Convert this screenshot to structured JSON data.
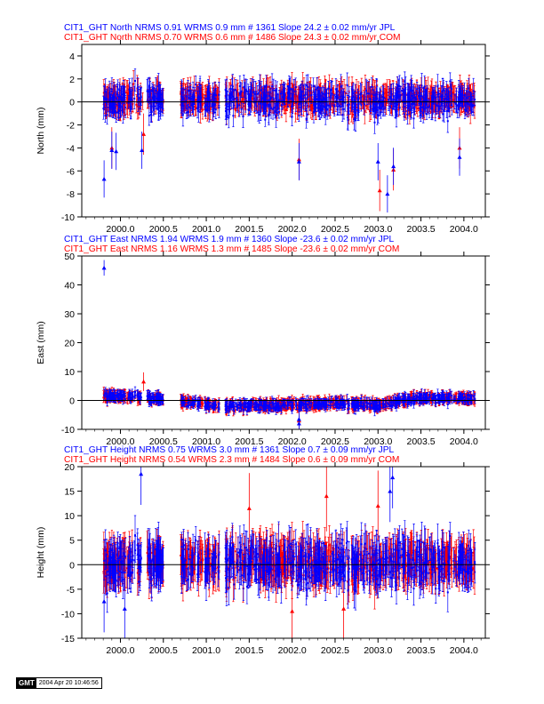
{
  "colors": {
    "jpl": "#0000ff",
    "com": "#ff0000",
    "axis": "#000000",
    "zero_line": "#000000"
  },
  "stamp": {
    "logo": "GMT",
    "timestamp": "2004 Apr 20 10:46:56"
  },
  "chart_data": [
    {
      "type": "scatter",
      "panel": "north",
      "title_lines": [
        {
          "text": "CIT1_GHT North NRMS 0.91 WRMS  0.9 mm # 1361 Slope   24.2 ±  0.02 mm/yr JPL",
          "color": "#0000ff"
        },
        {
          "text": "CIT1_GHT North NRMS 0.70 WRMS  0.6 mm # 1486 Slope   24.3 ±  0.02 mm/yr COM",
          "color": "#ff0000"
        }
      ],
      "ylabel": "North (mm)",
      "xlabel": "",
      "xlim": [
        1999.55,
        2004.25
      ],
      "ylim": [
        -10,
        5
      ],
      "xticks": [
        2000.0,
        2000.5,
        2001.0,
        2001.5,
        2002.0,
        2002.5,
        2003.0,
        2003.5,
        2004.0
      ],
      "xtick_labels": [
        "2000.0",
        "2000.5",
        "2001.0",
        "2001.5",
        "2002.0",
        "2002.5",
        "2003.0",
        "2003.5",
        "2004.0"
      ],
      "yticks": [
        -10,
        -8,
        -6,
        -4,
        -2,
        0,
        2,
        4
      ],
      "ytick_labels": [
        "-10",
        "-8",
        "-6",
        "-4",
        "-2",
        "0",
        "2",
        "4"
      ],
      "zero_line": true,
      "gaps": [
        [
          2000.27,
          2000.31
        ],
        [
          2000.5,
          2000.7
        ],
        [
          2001.15,
          2001.22
        ]
      ],
      "series": [
        {
          "name": "JPL",
          "color": "#0000ff",
          "count": 1361,
          "x_range": [
            1999.8,
            2004.13
          ],
          "center": 0.2,
          "spread": 0.9,
          "err": 0.9,
          "outliers": [
            [
              1999.81,
              -6.7
            ],
            [
              1999.9,
              -4.2
            ],
            [
              1999.95,
              -4.3
            ],
            [
              2000.25,
              -4.2
            ],
            [
              2002.08,
              -5.2
            ],
            [
              2003.0,
              -5.2
            ],
            [
              2003.11,
              -8.0
            ],
            [
              2003.18,
              -5.6
            ],
            [
              2003.95,
              -4.8
            ]
          ]
        },
        {
          "name": "COM",
          "color": "#ff0000",
          "count": 1486,
          "x_range": [
            1999.8,
            2004.13
          ],
          "center": 0.3,
          "spread": 0.7,
          "err": 1.0,
          "outliers": [
            [
              1999.9,
              -4.0
            ],
            [
              2000.27,
              -2.8
            ],
            [
              2002.08,
              -5.0
            ],
            [
              2003.02,
              -7.7
            ],
            [
              2003.18,
              -5.9
            ],
            [
              2003.95,
              -4.0
            ]
          ]
        }
      ]
    },
    {
      "type": "scatter",
      "panel": "east",
      "title_lines": [
        {
          "text": "CIT1_GHT East NRMS 1.94 WRMS  1.9 mm # 1360 Slope  -23.6 ±  0.02 mm/yr JPL",
          "color": "#0000ff"
        },
        {
          "text": "CIT1_GHT East NRMS 1.16 WRMS  1.3 mm # 1485 Slope  -23.6 ±  0.02 mm/yr COM",
          "color": "#ff0000"
        }
      ],
      "ylabel": "East (mm)",
      "xlabel": "",
      "xlim": [
        1999.55,
        2004.25
      ],
      "ylim": [
        -10,
        50
      ],
      "xticks": [
        2000.0,
        2000.5,
        2001.0,
        2001.5,
        2002.0,
        2002.5,
        2003.0,
        2003.5,
        2004.0
      ],
      "xtick_labels": [
        "2000.0",
        "2000.5",
        "2001.0",
        "2001.5",
        "2002.0",
        "2002.5",
        "2003.0",
        "2003.5",
        "2004.0"
      ],
      "yticks": [
        -10,
        0,
        10,
        20,
        30,
        40,
        50
      ],
      "ytick_labels": [
        "-10",
        "0",
        "10",
        "20",
        "30",
        "40",
        "50"
      ],
      "zero_line": true,
      "gaps": [
        [
          2000.27,
          2000.31
        ],
        [
          2000.5,
          2000.7
        ],
        [
          2001.15,
          2001.22
        ]
      ],
      "trend": [
        [
          1999.8,
          2.0
        ],
        [
          2000.5,
          0.5
        ],
        [
          2001.2,
          -2.0
        ],
        [
          2002.0,
          -1.5
        ],
        [
          2002.5,
          -0.8
        ],
        [
          2003.0,
          -1.5
        ],
        [
          2003.5,
          1.0
        ],
        [
          2004.13,
          0.8
        ]
      ],
      "series": [
        {
          "name": "JPL",
          "color": "#0000ff",
          "count": 1360,
          "x_range": [
            1999.8,
            2004.13
          ],
          "center": 0.0,
          "spread": 1.0,
          "err": 1.5,
          "outliers": [
            [
              1999.81,
              45.9
            ],
            [
              2002.08,
              -8.0
            ],
            [
              2002.08,
              -6.5
            ]
          ]
        },
        {
          "name": "COM",
          "color": "#ff0000",
          "count": 1485,
          "x_range": [
            1999.8,
            2004.13
          ],
          "center": 0.0,
          "spread": 0.9,
          "err": 1.8,
          "outliers": [
            [
              2000.27,
              6.5
            ],
            [
              2002.08,
              -7.0
            ]
          ]
        }
      ]
    },
    {
      "type": "scatter",
      "panel": "height",
      "title_lines": [
        {
          "text": "CIT1_GHT Height NRMS 0.75 WRMS  3.0 mm # 1361 Slope    0.7 ±  0.09 mm/yr JPL",
          "color": "#0000ff"
        },
        {
          "text": "CIT1_GHT Height NRMS 0.54 WRMS  2.3 mm # 1484 Slope    0.6 ±  0.09 mm/yr COM",
          "color": "#ff0000"
        }
      ],
      "ylabel": "Height (mm)",
      "xlabel": "",
      "xlim": [
        1999.55,
        2004.25
      ],
      "ylim": [
        -15,
        20
      ],
      "xticks": [
        2000.0,
        2000.5,
        2001.0,
        2001.5,
        2002.0,
        2002.5,
        2003.0,
        2003.5,
        2004.0
      ],
      "xtick_labels": [
        "2000.0",
        "2000.5",
        "2001.0",
        "2001.5",
        "2002.0",
        "2002.5",
        "2003.0",
        "2003.5",
        "2004.0"
      ],
      "yticks": [
        -15,
        -10,
        -5,
        0,
        5,
        10,
        15,
        20
      ],
      "ytick_labels": [
        "-15",
        "-10",
        "-5",
        "0",
        "5",
        "10",
        "15",
        "20"
      ],
      "zero_line": true,
      "gaps": [
        [
          2000.27,
          2000.31
        ],
        [
          2000.5,
          2000.7
        ],
        [
          2001.15,
          2001.22
        ]
      ],
      "series": [
        {
          "name": "JPL",
          "color": "#0000ff",
          "count": 1361,
          "x_range": [
            1999.8,
            2004.13
          ],
          "center": 0.5,
          "spread": 3.0,
          "err": 3.5,
          "outliers": [
            [
              2000.24,
              18.5
            ],
            [
              2003.17,
              17.8
            ],
            [
              2003.14,
              15.0
            ],
            [
              1999.81,
              -7.5
            ],
            [
              2000.05,
              -9.0
            ]
          ]
        },
        {
          "name": "COM",
          "color": "#ff0000",
          "count": 1484,
          "x_range": [
            1999.8,
            2004.13
          ],
          "center": 0.5,
          "spread": 2.3,
          "err": 4.0,
          "outliers": [
            [
              2002.4,
              14.0
            ],
            [
              2003.0,
              12.0
            ],
            [
              2001.5,
              11.5
            ],
            [
              2002.0,
              -9.5
            ],
            [
              2002.6,
              -9.0
            ]
          ]
        }
      ]
    }
  ]
}
